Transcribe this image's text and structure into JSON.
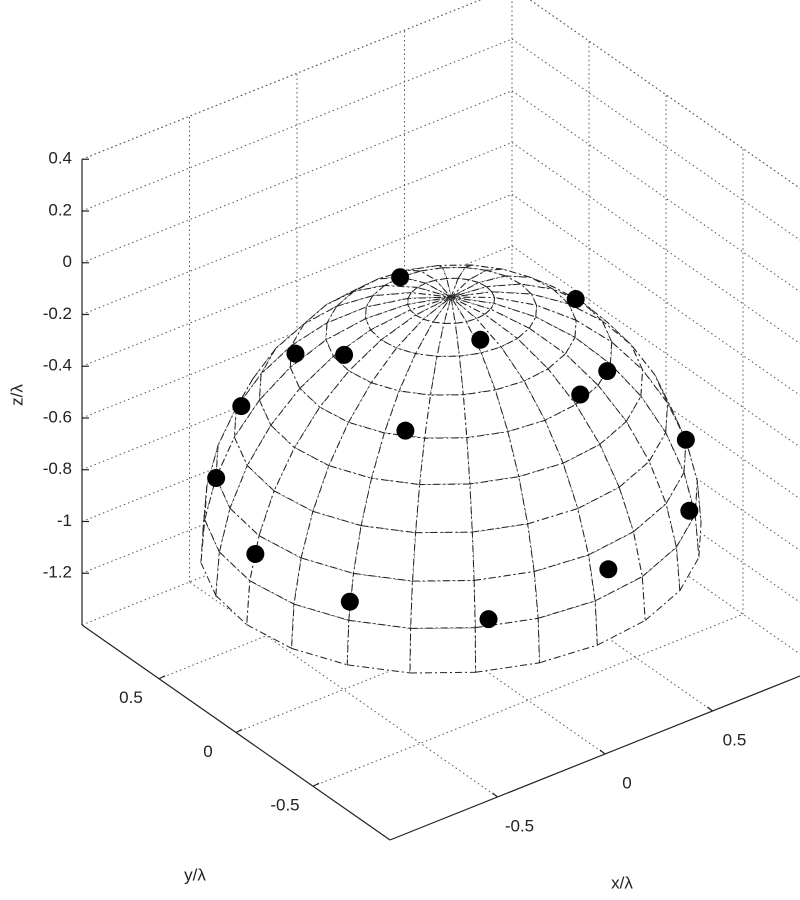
{
  "chart_data": {
    "type": "scatter3d",
    "xlabel": "x/λ",
    "ylabel": "y/λ",
    "zlabel": "z/λ",
    "x": [
      0,
      0.58,
      -0.48,
      -0.44,
      -0.05,
      0.39,
      0.2,
      -0.61,
      -0.47,
      0.77,
      -0.77,
      0.6,
      -0.91,
      0.08,
      -0.8,
      -0.42
    ],
    "y": [
      0.33,
      0,
      0.34,
      0.08,
      -0.26,
      -0.47,
      -0.56,
      0.51,
      -0.36,
      -0.45,
      0.45,
      -0.71,
      0,
      -0.91,
      -0.46,
      -0.83
    ],
    "z": [
      -0.11,
      -0.25,
      -0.25,
      -0.16,
      -0.09,
      -0.27,
      -0.26,
      -0.48,
      -0.26,
      -0.67,
      -0.68,
      -0.78,
      -0.74,
      -0.75,
      -0.77,
      -0.81
    ],
    "color": "#000000",
    "surface": {
      "type": "hemisphere",
      "center": [
        0,
        0,
        -1
      ],
      "radius": 0.95
    },
    "xlim": [
      -1,
      1
    ],
    "ylim": [
      -1,
      1
    ],
    "zlim": [
      -1.4,
      0.4
    ],
    "xticks": [
      -0.5,
      0,
      0.5
    ],
    "yticks": [
      -0.5,
      0,
      0.5
    ],
    "zticks": [
      -1.2,
      -1,
      -0.8,
      -0.6,
      -0.4,
      -0.2,
      0,
      0.2,
      0.4
    ],
    "grid": true
  }
}
